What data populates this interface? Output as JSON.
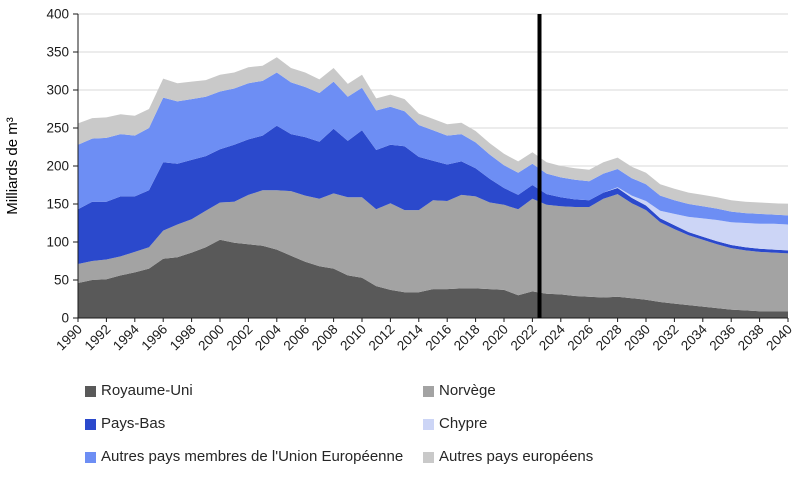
{
  "chart_data": {
    "type": "area",
    "stacked": true,
    "title": "",
    "xlabel": "",
    "ylabel": "Milliards de m³",
    "ylim": [
      0,
      400
    ],
    "ytick_step": 50,
    "xtick_step": 2,
    "grid": "horizontal",
    "legend_position": "bottom",
    "marker": {
      "x": 2022.5,
      "color": "#000000",
      "meaning": "vertical divider line"
    },
    "years": [
      1990,
      1991,
      1992,
      1993,
      1994,
      1995,
      1996,
      1997,
      1998,
      1999,
      2000,
      2001,
      2002,
      2003,
      2004,
      2005,
      2006,
      2007,
      2008,
      2009,
      2010,
      2011,
      2012,
      2013,
      2014,
      2015,
      2016,
      2017,
      2018,
      2019,
      2020,
      2021,
      2022,
      2023,
      2024,
      2025,
      2026,
      2027,
      2028,
      2029,
      2030,
      2031,
      2032,
      2033,
      2034,
      2035,
      2036,
      2037,
      2038,
      2039,
      2040
    ],
    "xtick_labels": [
      "1990",
      "1992",
      "1994",
      "1996",
      "1998",
      "2000",
      "2002",
      "2004",
      "2006",
      "2008",
      "2010",
      "2012",
      "2014",
      "2016",
      "2018",
      "2020",
      "2022",
      "2024",
      "2026",
      "2028",
      "2030",
      "2032",
      "2034",
      "2036",
      "2038",
      "2040"
    ],
    "ytick_labels": [
      "0",
      "50",
      "100",
      "150",
      "200",
      "250",
      "300",
      "350",
      "400"
    ],
    "series": [
      {
        "name": "Royaume-Uni",
        "color": "#595959",
        "values": [
          46,
          50,
          51,
          56,
          60,
          65,
          78,
          80,
          86,
          93,
          103,
          99,
          97,
          95,
          90,
          82,
          74,
          68,
          65,
          56,
          53,
          42,
          37,
          34,
          34,
          38,
          38,
          39,
          39,
          38,
          37,
          30,
          35,
          32,
          31,
          29,
          28,
          27,
          28,
          26,
          24,
          21,
          19,
          17,
          15,
          13,
          11,
          10,
          9,
          9,
          9
        ]
      },
      {
        "name": "Norvège",
        "color": "#a3a3a3",
        "values": [
          25,
          25,
          26,
          25,
          27,
          28,
          37,
          43,
          44,
          48,
          49,
          54,
          65,
          73,
          78,
          85,
          87,
          89,
          99,
          103,
          106,
          101,
          114,
          108,
          108,
          117,
          116,
          123,
          121,
          114,
          112,
          113,
          122,
          117,
          116,
          117,
          118,
          130,
          135,
          125,
          118,
          105,
          98,
          92,
          88,
          84,
          81,
          79,
          78,
          77,
          76
        ]
      },
      {
        "name": "Pays-Bas",
        "color": "#2b49cc",
        "values": [
          72,
          78,
          76,
          79,
          73,
          75,
          90,
          80,
          78,
          72,
          70,
          75,
          73,
          72,
          85,
          75,
          77,
          75,
          85,
          74,
          88,
          78,
          77,
          84,
          70,
          52,
          48,
          44,
          37,
          31,
          22,
          19,
          18,
          14,
          12,
          10,
          9,
          8,
          8,
          7,
          6,
          5,
          5,
          4,
          4,
          4,
          4,
          4,
          4,
          4,
          4
        ]
      },
      {
        "name": "Chypre",
        "color": "#ccd5f6",
        "values": [
          0,
          0,
          0,
          0,
          0,
          0,
          0,
          0,
          0,
          0,
          0,
          0,
          0,
          0,
          0,
          0,
          0,
          0,
          0,
          0,
          0,
          0,
          0,
          0,
          0,
          0,
          0,
          0,
          0,
          0,
          0,
          0,
          0,
          0,
          0,
          0,
          0,
          0,
          1,
          3,
          6,
          10,
          15,
          20,
          24,
          28,
          30,
          32,
          33,
          34,
          34
        ]
      },
      {
        "name": "Autres pays membres de l'Union Européenne",
        "color": "#6d8ef4",
        "values": [
          85,
          83,
          84,
          82,
          80,
          82,
          85,
          82,
          80,
          78,
          76,
          74,
          74,
          72,
          70,
          68,
          66,
          64,
          62,
          58,
          56,
          52,
          50,
          46,
          42,
          40,
          38,
          36,
          34,
          32,
          30,
          29,
          28,
          27,
          26,
          26,
          25,
          25,
          24,
          23,
          22,
          20,
          18,
          17,
          16,
          15,
          14,
          13,
          13,
          12,
          12
        ]
      },
      {
        "name": "Autres pays européens",
        "color": "#c9c9c9",
        "values": [
          28,
          27,
          27,
          26,
          26,
          25,
          25,
          24,
          23,
          22,
          22,
          21,
          21,
          20,
          20,
          19,
          19,
          18,
          18,
          17,
          17,
          16,
          16,
          16,
          15,
          15,
          15,
          15,
          15,
          15,
          15,
          15,
          15,
          15,
          15,
          15,
          15,
          15,
          15,
          15,
          15,
          15,
          15,
          15,
          15,
          15,
          15,
          15,
          15,
          15,
          15
        ]
      }
    ]
  }
}
